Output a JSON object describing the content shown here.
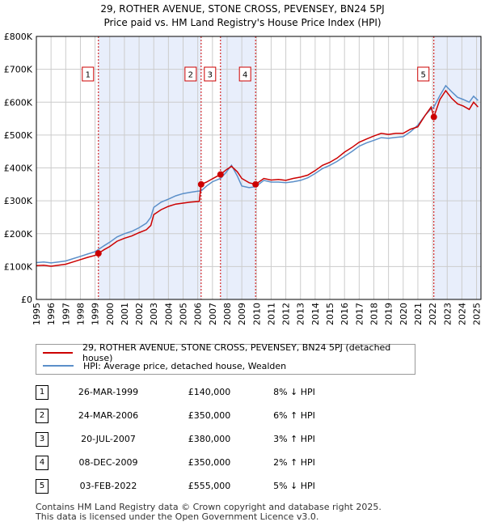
{
  "chart_data": {
    "type": "line",
    "title": "29, ROTHER AVENUE, STONE CROSS, PEVENSEY, BN24 5PJ",
    "subtitle": "Price paid vs. HM Land Registry's House Price Index (HPI)",
    "xlim": [
      1995,
      2025.3
    ],
    "ylim": [
      0,
      800000
    ],
    "x_ticks": [
      1995,
      1996,
      1997,
      1998,
      1999,
      2000,
      2001,
      2002,
      2003,
      2004,
      2005,
      2006,
      2007,
      2008,
      2009,
      2010,
      2011,
      2012,
      2013,
      2014,
      2015,
      2016,
      2017,
      2018,
      2019,
      2020,
      2021,
      2022,
      2023,
      2024,
      2025
    ],
    "y_ticks": [
      {
        "value": 0,
        "label": "£0"
      },
      {
        "value": 100000,
        "label": "£100K"
      },
      {
        "value": 200000,
        "label": "£200K"
      },
      {
        "value": 300000,
        "label": "£300K"
      },
      {
        "value": 400000,
        "label": "£400K"
      },
      {
        "value": 500000,
        "label": "£500K"
      },
      {
        "value": 600000,
        "label": "£600K"
      },
      {
        "value": 700000,
        "label": "£700K"
      },
      {
        "value": 800000,
        "label": "£800K"
      }
    ],
    "series": [
      {
        "name": "29, ROTHER AVENUE, STONE CROSS, PEVENSEY, BN24 5PJ (detached house)",
        "color": "#cc0000",
        "points": [
          [
            1995,
            103000
          ],
          [
            1995.5,
            104000
          ],
          [
            1996,
            101000
          ],
          [
            1996.5,
            104000
          ],
          [
            1997,
            107000
          ],
          [
            1997.5,
            114000
          ],
          [
            1998,
            121000
          ],
          [
            1998.5,
            128000
          ],
          [
            1999,
            134000
          ],
          [
            1999.23,
            140000
          ],
          [
            1999.6,
            151000
          ],
          [
            2000,
            161000
          ],
          [
            2000.5,
            177000
          ],
          [
            2001,
            186000
          ],
          [
            2001.5,
            193000
          ],
          [
            2002,
            203000
          ],
          [
            2002.5,
            212000
          ],
          [
            2002.8,
            225000
          ],
          [
            2003,
            258000
          ],
          [
            2003.5,
            273000
          ],
          [
            2004,
            283000
          ],
          [
            2004.5,
            290000
          ],
          [
            2005,
            293000
          ],
          [
            2005.5,
            296000
          ],
          [
            2006.1,
            298000
          ],
          [
            2006.23,
            350000
          ],
          [
            2006.6,
            357000
          ],
          [
            2007,
            367000
          ],
          [
            2007.55,
            380000
          ],
          [
            2007.9,
            393000
          ],
          [
            2008.3,
            405000
          ],
          [
            2008.7,
            388000
          ],
          [
            2009,
            368000
          ],
          [
            2009.5,
            355000
          ],
          [
            2009.94,
            350000
          ],
          [
            2010.5,
            368000
          ],
          [
            2011,
            363000
          ],
          [
            2011.5,
            365000
          ],
          [
            2012,
            362000
          ],
          [
            2012.5,
            368000
          ],
          [
            2013,
            372000
          ],
          [
            2013.5,
            378000
          ],
          [
            2014,
            392000
          ],
          [
            2014.5,
            408000
          ],
          [
            2015,
            417000
          ],
          [
            2015.5,
            430000
          ],
          [
            2016,
            448000
          ],
          [
            2016.5,
            462000
          ],
          [
            2017,
            478000
          ],
          [
            2017.5,
            488000
          ],
          [
            2018,
            497000
          ],
          [
            2018.5,
            505000
          ],
          [
            2019,
            502000
          ],
          [
            2019.5,
            505000
          ],
          [
            2020,
            505000
          ],
          [
            2020.5,
            518000
          ],
          [
            2021,
            525000
          ],
          [
            2021.5,
            560000
          ],
          [
            2021.9,
            585000
          ],
          [
            2022.09,
            555000
          ],
          [
            2022.5,
            608000
          ],
          [
            2022.9,
            635000
          ],
          [
            2023.3,
            612000
          ],
          [
            2023.7,
            595000
          ],
          [
            2024.1,
            588000
          ],
          [
            2024.5,
            578000
          ],
          [
            2024.8,
            600000
          ],
          [
            2025.1,
            585000
          ]
        ]
      },
      {
        "name": "HPI: Average price, detached house, Wealden",
        "color": "#5b8fc9",
        "points": [
          [
            1995,
            112000
          ],
          [
            1995.5,
            114000
          ],
          [
            1996,
            111000
          ],
          [
            1996.5,
            114000
          ],
          [
            1997,
            117000
          ],
          [
            1997.5,
            124000
          ],
          [
            1998,
            131000
          ],
          [
            1998.5,
            138000
          ],
          [
            1999,
            145000
          ],
          [
            1999.23,
            152000
          ],
          [
            1999.6,
            163000
          ],
          [
            2000,
            174000
          ],
          [
            2000.5,
            190000
          ],
          [
            2001,
            200000
          ],
          [
            2001.5,
            207000
          ],
          [
            2002,
            218000
          ],
          [
            2002.5,
            232000
          ],
          [
            2002.8,
            250000
          ],
          [
            2003,
            280000
          ],
          [
            2003.5,
            296000
          ],
          [
            2004,
            305000
          ],
          [
            2004.5,
            315000
          ],
          [
            2005,
            322000
          ],
          [
            2005.5,
            326000
          ],
          [
            2006,
            329000
          ],
          [
            2006.23,
            330000
          ],
          [
            2006.6,
            345000
          ],
          [
            2007,
            358000
          ],
          [
            2007.55,
            368000
          ],
          [
            2007.9,
            385000
          ],
          [
            2008.3,
            408000
          ],
          [
            2008.7,
            375000
          ],
          [
            2009,
            345000
          ],
          [
            2009.5,
            340000
          ],
          [
            2009.94,
            343000
          ],
          [
            2010.5,
            362000
          ],
          [
            2011,
            357000
          ],
          [
            2011.5,
            357000
          ],
          [
            2012,
            355000
          ],
          [
            2012.5,
            358000
          ],
          [
            2013,
            362000
          ],
          [
            2013.5,
            370000
          ],
          [
            2014,
            383000
          ],
          [
            2014.5,
            398000
          ],
          [
            2015,
            408000
          ],
          [
            2015.5,
            420000
          ],
          [
            2016,
            435000
          ],
          [
            2016.5,
            450000
          ],
          [
            2017,
            466000
          ],
          [
            2017.5,
            476000
          ],
          [
            2018,
            484000
          ],
          [
            2018.5,
            492000
          ],
          [
            2019,
            490000
          ],
          [
            2019.5,
            493000
          ],
          [
            2020,
            495000
          ],
          [
            2020.5,
            510000
          ],
          [
            2021,
            530000
          ],
          [
            2021.5,
            560000
          ],
          [
            2021.9,
            580000
          ],
          [
            2022.09,
            585000
          ],
          [
            2022.5,
            620000
          ],
          [
            2022.9,
            650000
          ],
          [
            2023.3,
            632000
          ],
          [
            2023.7,
            615000
          ],
          [
            2024.1,
            608000
          ],
          [
            2024.5,
            600000
          ],
          [
            2024.8,
            618000
          ],
          [
            2025.1,
            605000
          ]
        ]
      }
    ],
    "sales": [
      {
        "label": "1",
        "x": 1999.23,
        "price": 140000
      },
      {
        "label": "2",
        "x": 2006.23,
        "price": 350000
      },
      {
        "label": "3",
        "x": 2007.55,
        "price": 380000
      },
      {
        "label": "4",
        "x": 2009.94,
        "price": 350000
      },
      {
        "label": "5",
        "x": 2022.09,
        "price": 555000
      }
    ],
    "shaded_ranges": [
      [
        1999.23,
        2006.23
      ],
      [
        2007.55,
        2009.94
      ],
      [
        2022.09,
        2025.3
      ]
    ]
  },
  "legend": {
    "property_label": "29, ROTHER AVENUE, STONE CROSS, PEVENSEY, BN24 5PJ (detached house)",
    "hpi_label": "HPI: Average price, detached house, Wealden"
  },
  "transactions": [
    {
      "num": "1",
      "date": "26-MAR-1999",
      "price": "£140,000",
      "hpi": "8% ↓ HPI"
    },
    {
      "num": "2",
      "date": "24-MAR-2006",
      "price": "£350,000",
      "hpi": "6% ↑ HPI"
    },
    {
      "num": "3",
      "date": "20-JUL-2007",
      "price": "£380,000",
      "hpi": "3% ↑ HPI"
    },
    {
      "num": "4",
      "date": "08-DEC-2009",
      "price": "£350,000",
      "hpi": "2% ↑ HPI"
    },
    {
      "num": "5",
      "date": "03-FEB-2022",
      "price": "£555,000",
      "hpi": "5% ↓ HPI"
    }
  ],
  "footer": {
    "line1": "Contains HM Land Registry data © Crown copyright and database right 2025.",
    "line2": "This data is licensed under the Open Government Licence v3.0."
  }
}
